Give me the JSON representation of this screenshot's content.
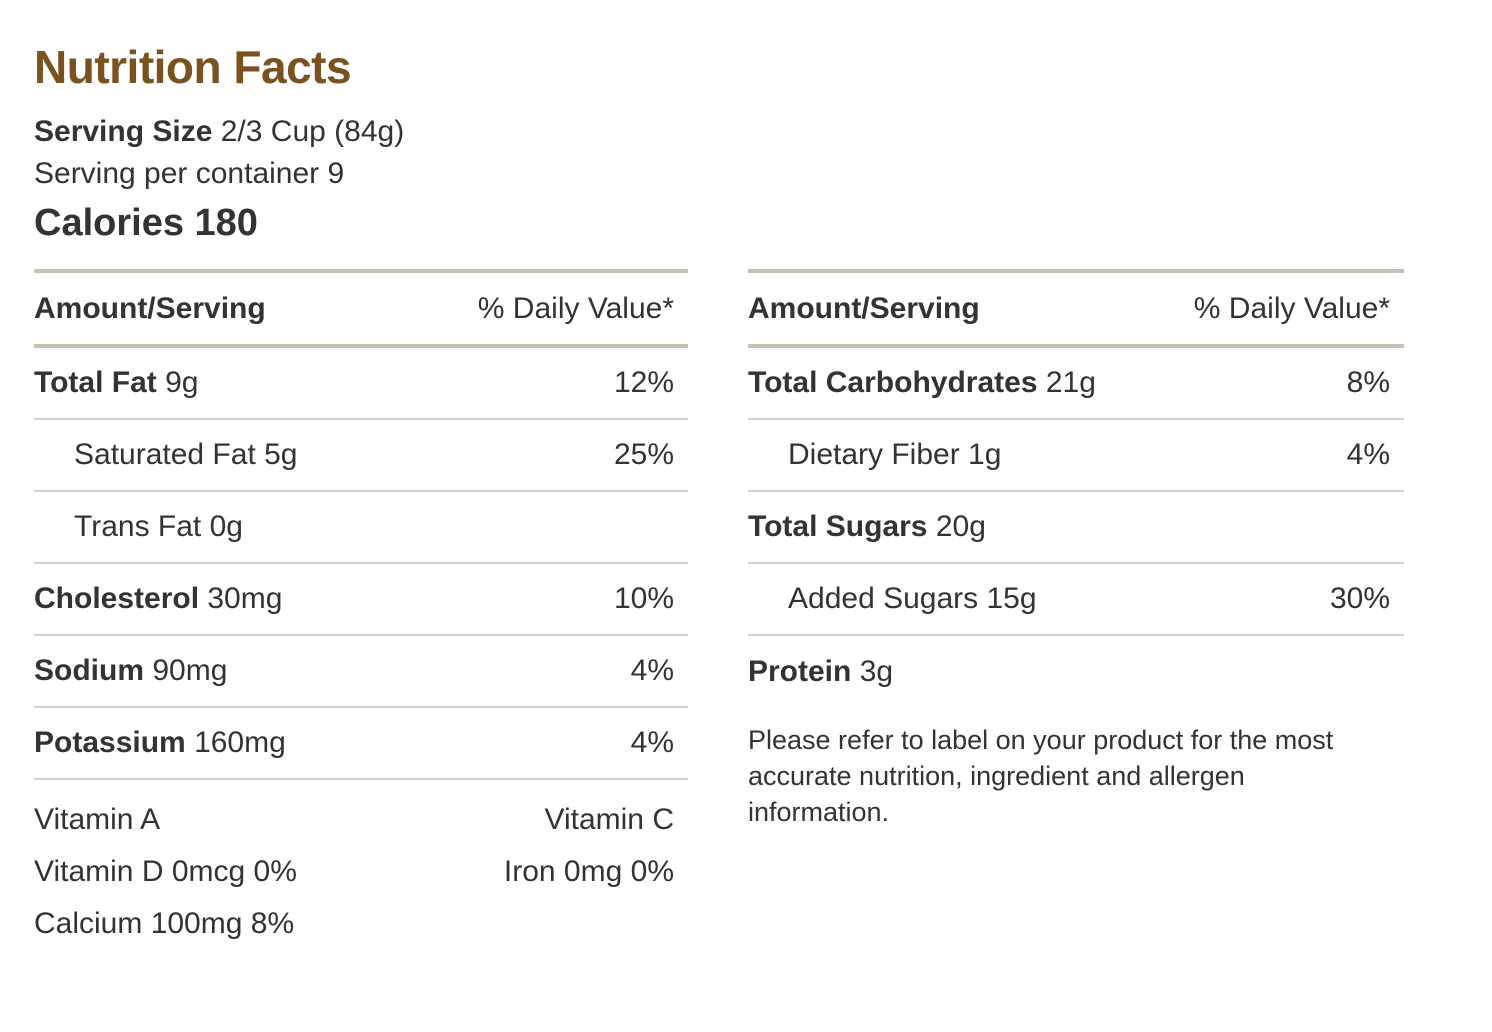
{
  "title": "Nutrition Facts",
  "serving": {
    "size_label": "Serving Size",
    "size_value": "2/3 Cup (84g)",
    "per_container": "Serving per container 9"
  },
  "calories": "Calories 180",
  "left": {
    "header_left": "Amount/Serving",
    "header_right": "% Daily Value*",
    "rows": [
      {
        "name": "Total Fat",
        "amount": "9g",
        "dv": "12%"
      },
      {
        "name": "Saturated Fat 5g",
        "amount": "",
        "dv": "25%"
      },
      {
        "name": "Trans Fat 0g",
        "amount": "",
        "dv": ""
      },
      {
        "name": "Cholesterol",
        "amount": "30mg",
        "dv": "10%"
      },
      {
        "name": "Sodium",
        "amount": "90mg",
        "dv": "4%"
      },
      {
        "name": "Potassium",
        "amount": "160mg",
        "dv": "4%"
      }
    ],
    "vitamins": [
      {
        "left": "Vitamin A",
        "right": "Vitamin C"
      },
      {
        "left": "Vitamin D 0mcg 0%",
        "right": "Iron 0mg 0%"
      },
      {
        "left": "Calcium 100mg 8%",
        "right": ""
      }
    ]
  },
  "right": {
    "header_left": "Amount/Serving",
    "header_right": "% Daily Value*",
    "rows": [
      {
        "name": "Total Carbohydrates",
        "amount": "21g",
        "dv": "8%"
      },
      {
        "name": "Dietary Fiber 1g",
        "amount": "",
        "dv": "4%"
      },
      {
        "name": "Total Sugars",
        "amount": "20g",
        "dv": ""
      },
      {
        "name": "Added Sugars 15g",
        "amount": "",
        "dv": "30%"
      },
      {
        "name": "Protein",
        "amount": "3g",
        "dv": ""
      }
    ],
    "disclaimer": "Please refer to label on your product for the most accurate nutrition, ingredient and allergen information."
  }
}
